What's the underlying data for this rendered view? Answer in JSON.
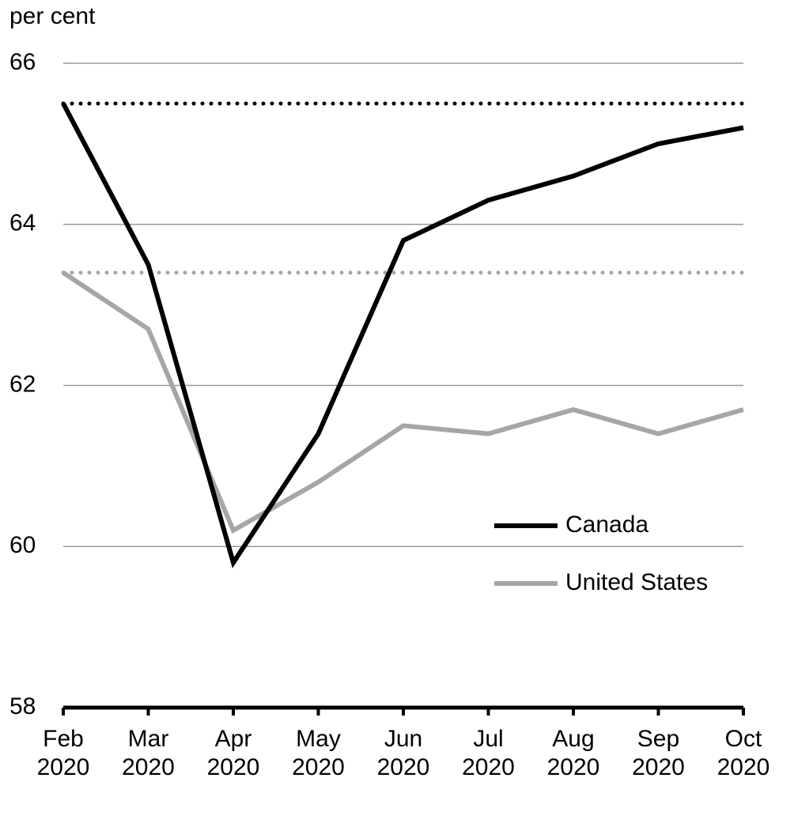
{
  "chart_data": {
    "type": "line",
    "y_label": "per cent",
    "categories": [
      "Feb 2020",
      "Mar 2020",
      "Apr 2020",
      "May 2020",
      "Jun 2020",
      "Jul 2020",
      "Aug 2020",
      "Sep 2020",
      "Oct 2020"
    ],
    "series": [
      {
        "name": "Canada",
        "color": "#000000",
        "values": [
          65.5,
          63.5,
          59.8,
          61.4,
          63.8,
          64.3,
          64.6,
          65.0,
          65.2
        ]
      },
      {
        "name": "United States",
        "color": "#a6a6a6",
        "values": [
          63.4,
          62.7,
          60.2,
          60.8,
          61.5,
          61.4,
          61.7,
          61.4,
          61.7
        ]
      }
    ],
    "reference_lines": [
      {
        "value": 65.5,
        "color": "#000000"
      },
      {
        "value": 63.4,
        "color": "#a6a6a6"
      }
    ],
    "ylim": [
      58,
      66
    ],
    "yticks": [
      58,
      60,
      62,
      64,
      66
    ],
    "grid": true,
    "legend": "lower-right"
  }
}
